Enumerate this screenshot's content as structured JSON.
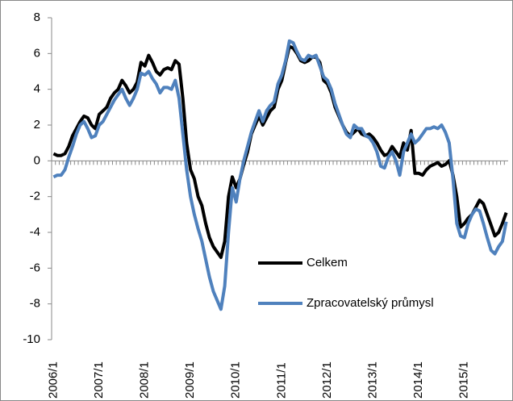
{
  "chart_data": {
    "type": "line",
    "categories": [
      "2006/1",
      null,
      null,
      null,
      null,
      null,
      null,
      null,
      null,
      null,
      null,
      null,
      "2007/1",
      null,
      null,
      null,
      null,
      null,
      null,
      null,
      null,
      null,
      null,
      null,
      "2008/1",
      null,
      null,
      null,
      null,
      null,
      null,
      null,
      null,
      null,
      null,
      null,
      "2009/1",
      null,
      null,
      null,
      null,
      null,
      null,
      null,
      null,
      null,
      null,
      null,
      "2010/1",
      null,
      null,
      null,
      null,
      null,
      null,
      null,
      null,
      null,
      null,
      null,
      "2011/1",
      null,
      null,
      null,
      null,
      null,
      null,
      null,
      null,
      null,
      null,
      null,
      "2012/1",
      null,
      null,
      null,
      null,
      null,
      null,
      null,
      null,
      null,
      null,
      null,
      "2013/1",
      null,
      null,
      null,
      null,
      null,
      null,
      null,
      null,
      null,
      null,
      null,
      "2014/1",
      null,
      null,
      null,
      null,
      null,
      null,
      null,
      null,
      null,
      null,
      null,
      "2015/1",
      null,
      null,
      null,
      null,
      null,
      null,
      null,
      null,
      null,
      null,
      null
    ],
    "series": [
      {
        "name": "Celkem",
        "color": "#000000",
        "values": [
          0.4,
          0.3,
          0.3,
          0.4,
          0.8,
          1.4,
          1.8,
          2.2,
          2.5,
          2.4,
          2.0,
          1.8,
          2.6,
          2.8,
          3.0,
          3.5,
          3.8,
          4.0,
          4.5,
          4.2,
          3.8,
          4.0,
          4.4,
          5.5,
          5.3,
          5.9,
          5.5,
          5.0,
          4.8,
          5.1,
          5.2,
          5.1,
          5.6,
          5.4,
          3.5,
          1.0,
          -0.5,
          -1.0,
          -2.0,
          -2.5,
          -3.5,
          -4.3,
          -4.8,
          -5.1,
          -5.4,
          -4.5,
          -2.0,
          -0.9,
          -1.5,
          -1.0,
          -0.2,
          0.5,
          1.5,
          2.0,
          2.5,
          2.0,
          2.4,
          2.8,
          3.0,
          4.0,
          4.5,
          5.5,
          6.4,
          6.3,
          6.0,
          5.6,
          5.5,
          5.6,
          5.8,
          5.8,
          5.5,
          4.5,
          4.3,
          3.8,
          3.0,
          2.5,
          2.0,
          1.6,
          1.4,
          1.6,
          1.8,
          1.5,
          1.4,
          1.5,
          1.3,
          1.0,
          0.6,
          0.3,
          0.4,
          0.8,
          0.5,
          0.2,
          1.0,
          0.6,
          1.7,
          -0.7,
          -0.7,
          -0.8,
          -0.5,
          -0.3,
          -0.2,
          -0.1,
          -0.3,
          -0.2,
          0.0,
          -0.8,
          -2.0,
          -3.7,
          -3.5,
          -3.2,
          -3.0,
          -2.6,
          -2.2,
          -2.4,
          -3.0,
          -3.6,
          -4.2,
          -4.0,
          -3.5,
          -2.9
        ]
      },
      {
        "name": "Zpracovatelský průmysl",
        "color": "#4f81bd",
        "values": [
          -0.9,
          -0.8,
          -0.8,
          -0.5,
          0.2,
          0.8,
          1.5,
          2.0,
          2.2,
          1.8,
          1.3,
          1.4,
          2.0,
          2.2,
          2.6,
          3.0,
          3.4,
          3.7,
          4.0,
          3.5,
          3.1,
          3.5,
          4.0,
          4.9,
          4.8,
          5.0,
          4.6,
          4.3,
          3.8,
          4.1,
          4.1,
          4.0,
          4.5,
          3.5,
          1.5,
          -0.5,
          -2.0,
          -3.0,
          -3.8,
          -4.5,
          -5.5,
          -6.5,
          -7.3,
          -7.8,
          -8.3,
          -7.0,
          -4.0,
          -1.5,
          -2.3,
          -1.0,
          0.0,
          0.8,
          1.6,
          2.2,
          2.8,
          2.2,
          2.8,
          3.1,
          3.3,
          4.3,
          4.8,
          5.6,
          6.7,
          6.6,
          6.1,
          5.7,
          5.6,
          5.9,
          5.8,
          5.9,
          5.3,
          4.7,
          4.5,
          4.0,
          3.2,
          2.6,
          2.0,
          1.5,
          1.3,
          2.0,
          1.8,
          1.8,
          1.4,
          1.3,
          1.0,
          0.5,
          -0.3,
          -0.4,
          0.2,
          0.5,
          0.0,
          -0.8,
          0.5,
          1.0,
          1.5,
          1.0,
          1.2,
          1.5,
          1.8,
          1.8,
          1.9,
          1.8,
          2.0,
          1.6,
          1.0,
          -1.0,
          -3.5,
          -4.2,
          -4.3,
          -3.5,
          -3.0,
          -2.7,
          -2.8,
          -3.5,
          -4.3,
          -5.0,
          -5.2,
          -4.8,
          -4.5,
          -3.4
        ]
      }
    ],
    "ylim": [
      -10,
      8
    ],
    "yticks": [
      -10,
      -8,
      -6,
      -4,
      -2,
      0,
      2,
      4,
      6,
      8
    ],
    "grid": false,
    "legend": "lower-right"
  }
}
